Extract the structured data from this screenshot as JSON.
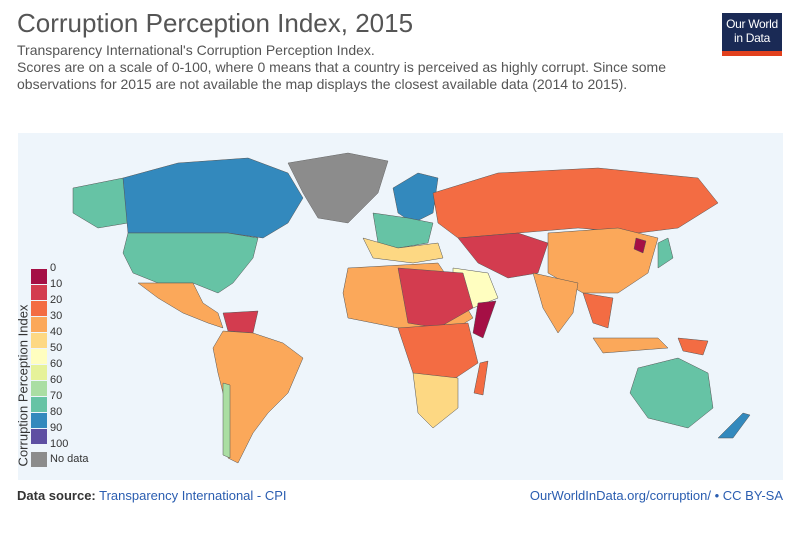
{
  "title": "Corruption Perception Index, 2015",
  "subtitle": "Transparency International's Corruption Perception Index.",
  "description": "Scores are on a scale of 0-100, where 0 means that a country is perceived as highly corrupt. Since some observations for 2015 are not available the map displays the closest available data (2014 to 2015).",
  "logo": {
    "line1": "Our World",
    "line2": "in Data"
  },
  "legend": {
    "title": "Corruption Perception Index",
    "labels": [
      "0",
      "10",
      "20",
      "30",
      "40",
      "50",
      "60",
      "60",
      "70",
      "80",
      "90",
      "100"
    ],
    "colors": [
      "#a50f45",
      "#d33c4f",
      "#f36c43",
      "#fba85a",
      "#fdd883",
      "#fffec0",
      "#e6f29a",
      "#aadea3",
      "#66c3a5",
      "#3389bd",
      "#5e4fa2"
    ],
    "nodata_label": "No data",
    "nodata_color": "#8c8c8c"
  },
  "footer": {
    "source_label": "Data source:",
    "source": "Transparency International - CPI",
    "url": "OurWorldInData.org/corruption/",
    "license": "CC BY-SA"
  }
}
